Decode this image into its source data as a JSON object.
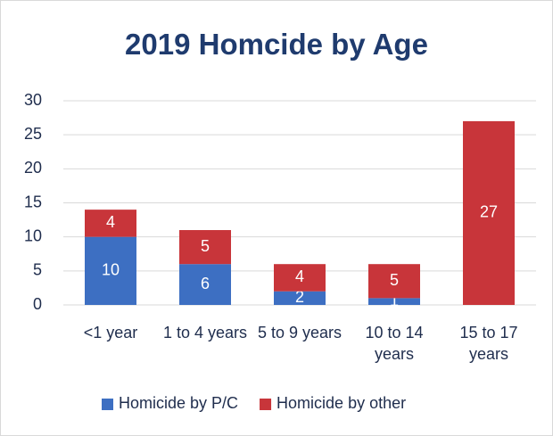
{
  "chart_data": {
    "type": "stacked_bar",
    "title": "2019 Homcide by Age",
    "categories": [
      "<1 year",
      "1 to 4 years",
      "5 to 9 years",
      "10 to 14 years",
      "15 to 17 years"
    ],
    "series": [
      {
        "name": "Homicide by P/C",
        "color": "#3d6fc2",
        "values": [
          10,
          6,
          2,
          1,
          0
        ]
      },
      {
        "name": "Homicide by other",
        "color": "#c8353a",
        "values": [
          4,
          5,
          4,
          5,
          27
        ]
      }
    ],
    "ylim": [
      0,
      30
    ],
    "yticks": [
      0,
      5,
      10,
      15,
      20,
      25,
      30
    ],
    "grid": true,
    "legend": "bottom"
  }
}
